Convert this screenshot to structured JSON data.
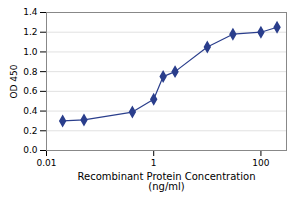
{
  "chart_data": {
    "type": "line",
    "x": [
      0.02,
      0.05,
      0.4,
      1.0,
      1.5,
      2.5,
      10,
      30,
      100,
      200
    ],
    "values": [
      0.3,
      0.31,
      0.39,
      0.52,
      0.75,
      0.8,
      1.05,
      1.18,
      1.2,
      1.25
    ],
    "color": "#2a3e8c",
    "marker": "diamond",
    "xlabel": "Recombinant Protein Concentration\n(ng/ml)",
    "ylabel": "OD 450",
    "xlim": [
      0.01,
      300
    ],
    "ylim": [
      0.0,
      1.4
    ],
    "xticks": [
      0.01,
      1,
      100
    ],
    "yticks": [
      {
        "value": 0.0,
        "label": "0.0"
      },
      0.2,
      0.4,
      0.6,
      0.8,
      {
        "value": 1.0,
        "label": "1.0"
      },
      1.2,
      1.4
    ],
    "log": "x",
    "grid": "y"
  }
}
